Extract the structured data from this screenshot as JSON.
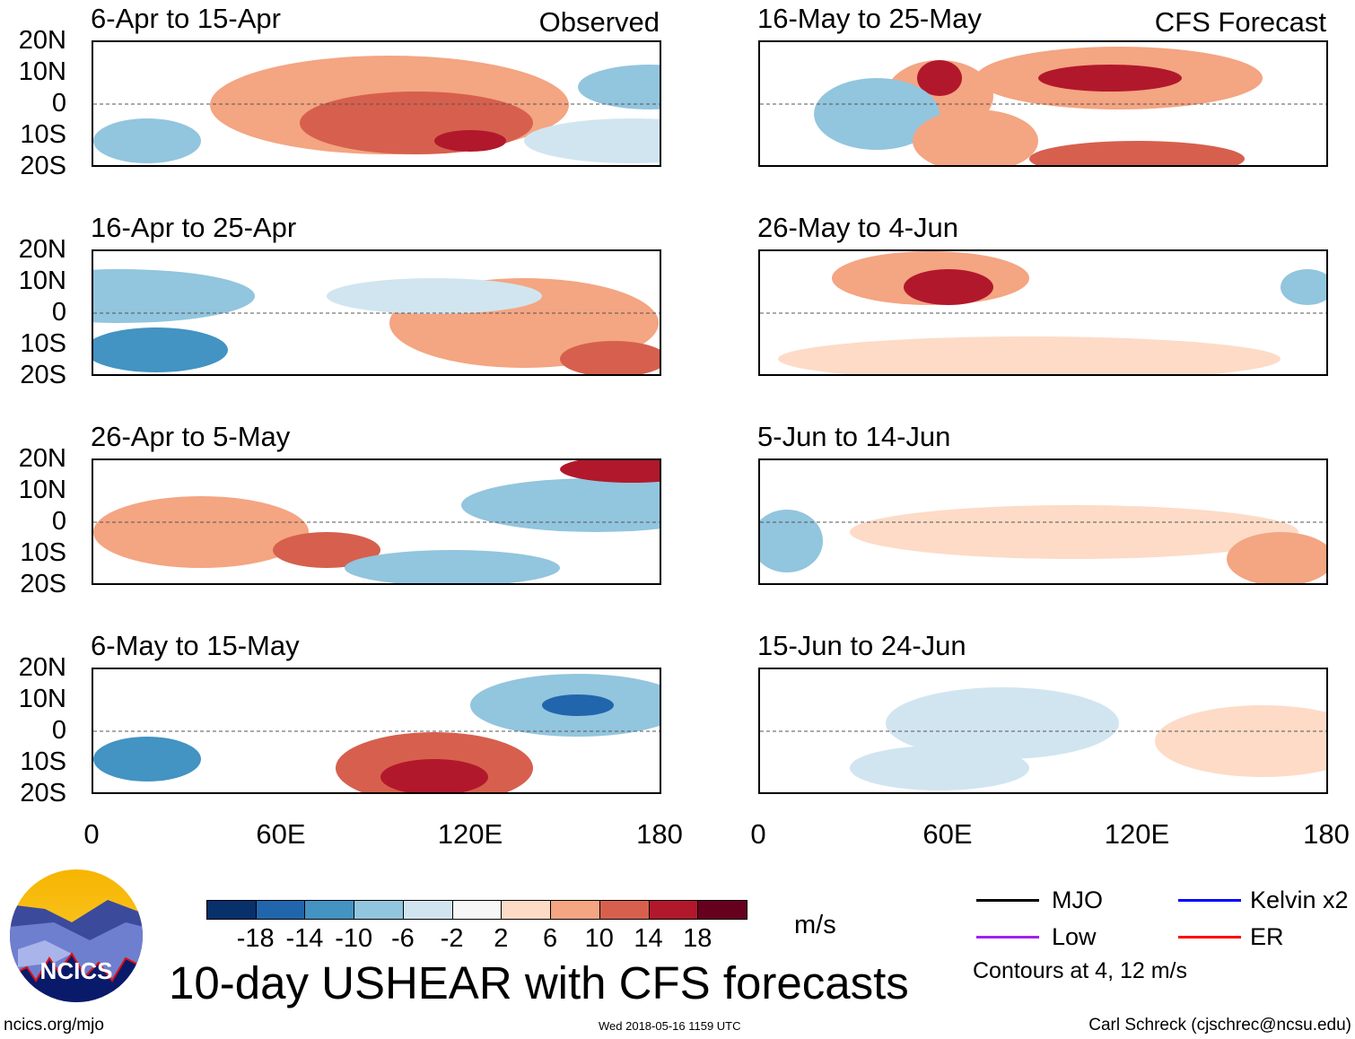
{
  "header": {
    "observed_label": "Observed",
    "forecast_label": "CFS Forecast"
  },
  "panels": {
    "left": [
      "6-Apr to 15-Apr",
      "16-Apr to 25-Apr",
      "26-Apr to 5-May",
      "6-May to 15-May"
    ],
    "right": [
      "16-May to 25-May",
      "26-May to 4-Jun",
      "5-Jun to 14-Jun",
      "15-Jun to 24-Jun"
    ]
  },
  "lat_labels": [
    "20N",
    "10N",
    "0",
    "10S",
    "20S"
  ],
  "lon_labels": [
    "0",
    "60E",
    "120E",
    "180"
  ],
  "colorbar": {
    "colors": [
      "#08306b",
      "#2166ac",
      "#4393c3",
      "#92c5de",
      "#d1e5f0",
      "#f7f7f7",
      "#fddbc7",
      "#f4a582",
      "#d6604d",
      "#b2182b",
      "#67001f"
    ],
    "labels": [
      "-18",
      "-14",
      "-10",
      "-6",
      "-2",
      "2",
      "6",
      "10",
      "14",
      "18"
    ],
    "units": "m/s"
  },
  "legend": {
    "items": [
      {
        "label": "MJO",
        "color": "#000000"
      },
      {
        "label": "Kelvin x2",
        "color": "#0000ff"
      },
      {
        "label": "Low",
        "color": "#a020f0"
      },
      {
        "label": "ER",
        "color": "#ff0000"
      }
    ],
    "note": "Contours at 4, 12 m/s"
  },
  "title": "10-day USHEAR with CFS forecasts",
  "logo_text": "NCICS",
  "footer": {
    "url": "ncics.org/mjo",
    "timestamp": "Wed 2018-05-16 1159 UTC",
    "author": "Carl Schreck (cjschrec@ncsu.edu)"
  }
}
